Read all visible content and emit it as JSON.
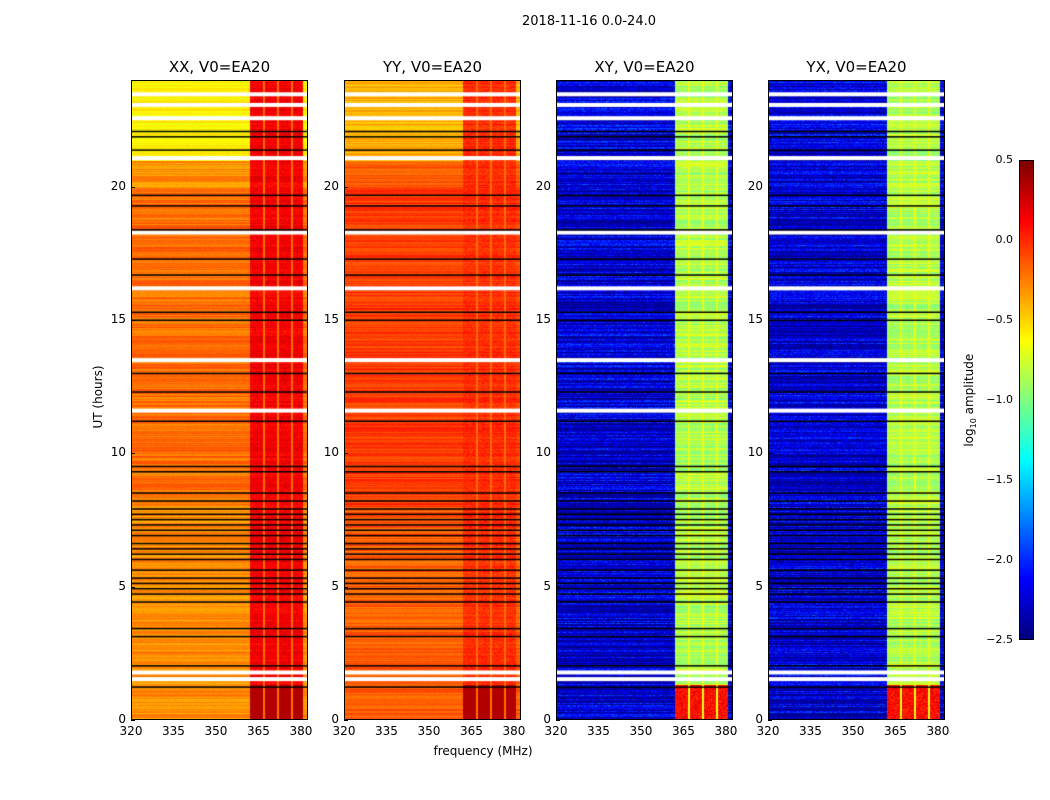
{
  "chart_data": {
    "type": "heatmap",
    "title": "2018-11-16 0.0-24.0",
    "xlabel": "frequency (MHz)",
    "ylabel": "UT (hours)",
    "xlim": [
      320,
      382.5
    ],
    "ylim": [
      0,
      24
    ],
    "xticks": [
      "320",
      "335",
      "350",
      "365",
      "380"
    ],
    "xtick_values": [
      320,
      335,
      350,
      365,
      380
    ],
    "yticks": [
      "0",
      "5",
      "10",
      "15",
      "20"
    ],
    "ytick_values": [
      0,
      5,
      10,
      15,
      20
    ],
    "band_mhz": [
      362,
      381
    ],
    "band_gaps_mhz": [
      367,
      372,
      377
    ],
    "flagged_white_hours": [
      1.5,
      1.75,
      11.6,
      13.5,
      16.2,
      18.3,
      21.1,
      22.6,
      23.1,
      23.5
    ],
    "flagged_black_hours": [
      1.2,
      2.0,
      3.1,
      3.4,
      4.4,
      4.7,
      4.9,
      5.1,
      5.3,
      5.6,
      6.0,
      6.2,
      6.4,
      6.6,
      6.9,
      7.1,
      7.3,
      7.5,
      7.7,
      7.9,
      8.2,
      8.5,
      9.3,
      9.5,
      11.2,
      12.3,
      13.0,
      15.0,
      15.3,
      16.7,
      17.3,
      18.4,
      19.3,
      19.7,
      21.4,
      21.9,
      22.1
    ],
    "panels": [
      {
        "title": "XX, V0=EA20",
        "base_log_amp": -0.3,
        "band_log_amp": 0.15,
        "upper_base_log_amp": -0.6
      },
      {
        "title": "YY, V0=EA20",
        "base_log_amp": -0.15,
        "band_log_amp": 0.0,
        "upper_base_log_amp": -0.4
      },
      {
        "title": "XY, V0=EA20",
        "base_log_amp": -2.25,
        "band_log_amp": -0.85,
        "upper_base_log_amp": -2.2
      },
      {
        "title": "YX, V0=EA20",
        "base_log_amp": -2.25,
        "band_log_amp": -0.85,
        "upper_base_log_amp": -2.2
      }
    ],
    "colorbar": {
      "label": "log10 amplitude",
      "label_main": "log",
      "label_sub": "10",
      "label_rest": " amplitude",
      "range": [
        -2.5,
        0.5
      ],
      "ticks": [
        "0.5",
        "0.0",
        "−0.5",
        "−1.0",
        "−1.5",
        "−2.0",
        "−2.5"
      ],
      "tick_values": [
        0.5,
        0,
        -0.5,
        -1,
        -1.5,
        -2,
        -2.5
      ],
      "colormap": "jet"
    }
  }
}
